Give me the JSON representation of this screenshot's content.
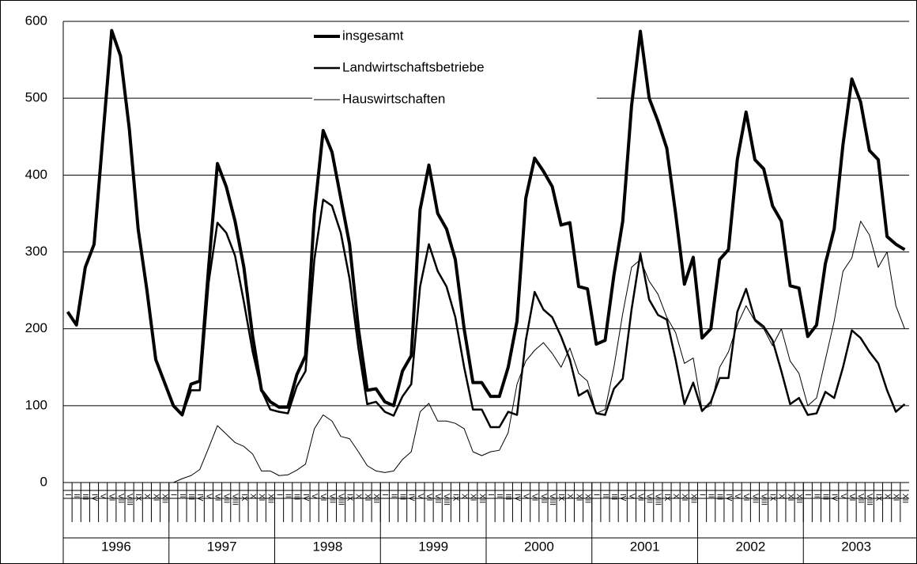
{
  "chart_data": {
    "type": "line",
    "categories": [
      "I",
      "II",
      "III",
      "IV",
      "V",
      "VI",
      "VII",
      "VIII",
      "IX",
      "X",
      "XI",
      "XII",
      "I",
      "II",
      "III",
      "IV",
      "V",
      "VI",
      "VII",
      "VIII",
      "IX",
      "X",
      "XI",
      "XII",
      "I",
      "II",
      "III",
      "IV",
      "V",
      "VI",
      "VII",
      "VIII",
      "IX",
      "X",
      "XI",
      "XII",
      "I",
      "II",
      "III",
      "IV",
      "V",
      "VI",
      "VII",
      "VIII",
      "IX",
      "X",
      "XI",
      "XII",
      "I",
      "II",
      "III",
      "IV",
      "V",
      "VI",
      "VII",
      "VIII",
      "IX",
      "X",
      "XI",
      "XII",
      "I",
      "II",
      "III",
      "IV",
      "V",
      "VI",
      "VII",
      "VIII",
      "IX",
      "X",
      "XI",
      "XII",
      "I",
      "II",
      "III",
      "IV",
      "V",
      "VI",
      "VII",
      "VIII",
      "IX",
      "X",
      "XI",
      "XII",
      "I",
      "II",
      "III",
      "IV",
      "V",
      "VI",
      "VII",
      "VIII",
      "IX",
      "X",
      "XI",
      "XII"
    ],
    "years": [
      "1996",
      "1997",
      "1998",
      "1999",
      "2000",
      "2001",
      "2002",
      "2003"
    ],
    "series": [
      {
        "name": "insgesamt",
        "color": "#000000",
        "width": 4,
        "values": [
          222,
          205,
          280,
          310,
          450,
          588,
          555,
          460,
          330,
          250,
          160,
          130,
          100,
          88,
          128,
          132,
          280,
          415,
          385,
          340,
          280,
          190,
          120,
          105,
          98,
          98,
          140,
          165,
          350,
          458,
          430,
          370,
          310,
          200,
          120,
          122,
          105,
          100,
          145,
          165,
          355,
          413,
          350,
          330,
          290,
          200,
          130,
          130,
          112,
          112,
          150,
          210,
          370,
          422,
          405,
          385,
          335,
          338,
          255,
          252,
          180,
          185,
          270,
          340,
          490,
          587,
          500,
          470,
          435,
          350,
          258,
          293,
          188,
          200,
          290,
          303,
          420,
          482,
          420,
          408,
          360,
          340,
          256,
          253,
          190,
          205,
          285,
          330,
          440,
          525,
          495,
          432,
          420,
          320,
          310,
          303
        ]
      },
      {
        "name": "Landwirtschaftsbetriebe",
        "color": "#000000",
        "width": 2.5,
        "values": [
          222,
          205,
          280,
          310,
          450,
          588,
          555,
          460,
          330,
          250,
          160,
          130,
          100,
          88,
          120,
          120,
          260,
          338,
          325,
          295,
          235,
          170,
          120,
          95,
          92,
          90,
          125,
          145,
          290,
          368,
          360,
          325,
          265,
          175,
          102,
          105,
          92,
          87,
          112,
          128,
          255,
          310,
          275,
          255,
          215,
          150,
          95,
          95,
          72,
          72,
          92,
          88,
          185,
          248,
          225,
          215,
          190,
          160,
          113,
          120,
          90,
          88,
          122,
          135,
          225,
          298,
          238,
          218,
          212,
          160,
          102,
          130,
          93,
          105,
          136,
          136,
          222,
          252,
          212,
          203,
          185,
          145,
          102,
          110,
          88,
          90,
          118,
          110,
          150,
          198,
          188,
          170,
          155,
          120,
          92,
          102
        ]
      },
      {
        "name": "Hauswirtschaften",
        "color": "#000000",
        "width": 1,
        "values": [
          null,
          null,
          null,
          null,
          null,
          null,
          null,
          null,
          null,
          null,
          null,
          null,
          0,
          5,
          9,
          17,
          45,
          74,
          63,
          52,
          47,
          37,
          15,
          15,
          9,
          10,
          16,
          24,
          70,
          88,
          80,
          60,
          57,
          40,
          22,
          15,
          13,
          15,
          30,
          40,
          92,
          103,
          80,
          80,
          77,
          70,
          40,
          35,
          40,
          42,
          65,
          128,
          158,
          172,
          182,
          168,
          150,
          175,
          142,
          132,
          90,
          95,
          150,
          220,
          280,
          290,
          262,
          245,
          215,
          195,
          155,
          162,
          95,
          100,
          150,
          170,
          205,
          230,
          210,
          200,
          178,
          200,
          158,
          142,
          100,
          110,
          160,
          210,
          275,
          292,
          340,
          322,
          280,
          300,
          230,
          200
        ]
      }
    ],
    "ylim": [
      0,
      600
    ],
    "yticks": [
      0,
      100,
      200,
      300,
      400,
      500,
      600
    ],
    "grid": true,
    "legend": "top"
  }
}
